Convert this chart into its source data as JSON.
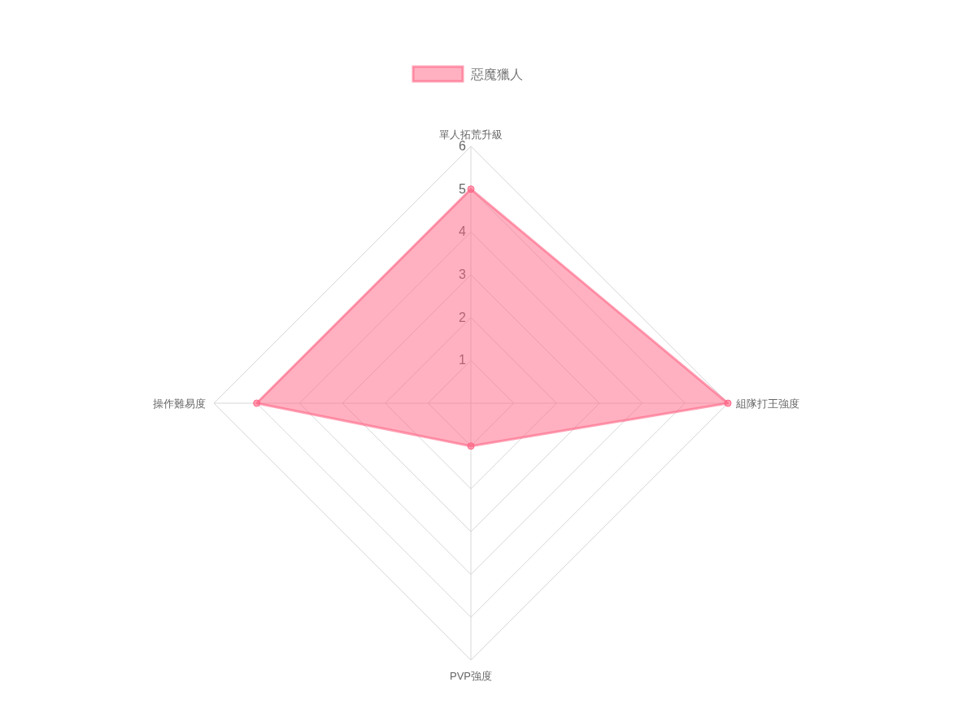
{
  "chart_data": {
    "type": "radar",
    "categories": [
      "單人拓荒升級",
      "組隊打王強度",
      "PVP強度",
      "操作難易度"
    ],
    "series": [
      {
        "name": "惡魔獵人",
        "color": "#ff6384",
        "values": [
          5,
          6,
          1,
          5
        ]
      }
    ],
    "ylim": [
      0,
      6
    ],
    "yticks": [
      1,
      2,
      3,
      4,
      5,
      6
    ],
    "grid": true,
    "legend": "top",
    "marker": "circle"
  }
}
